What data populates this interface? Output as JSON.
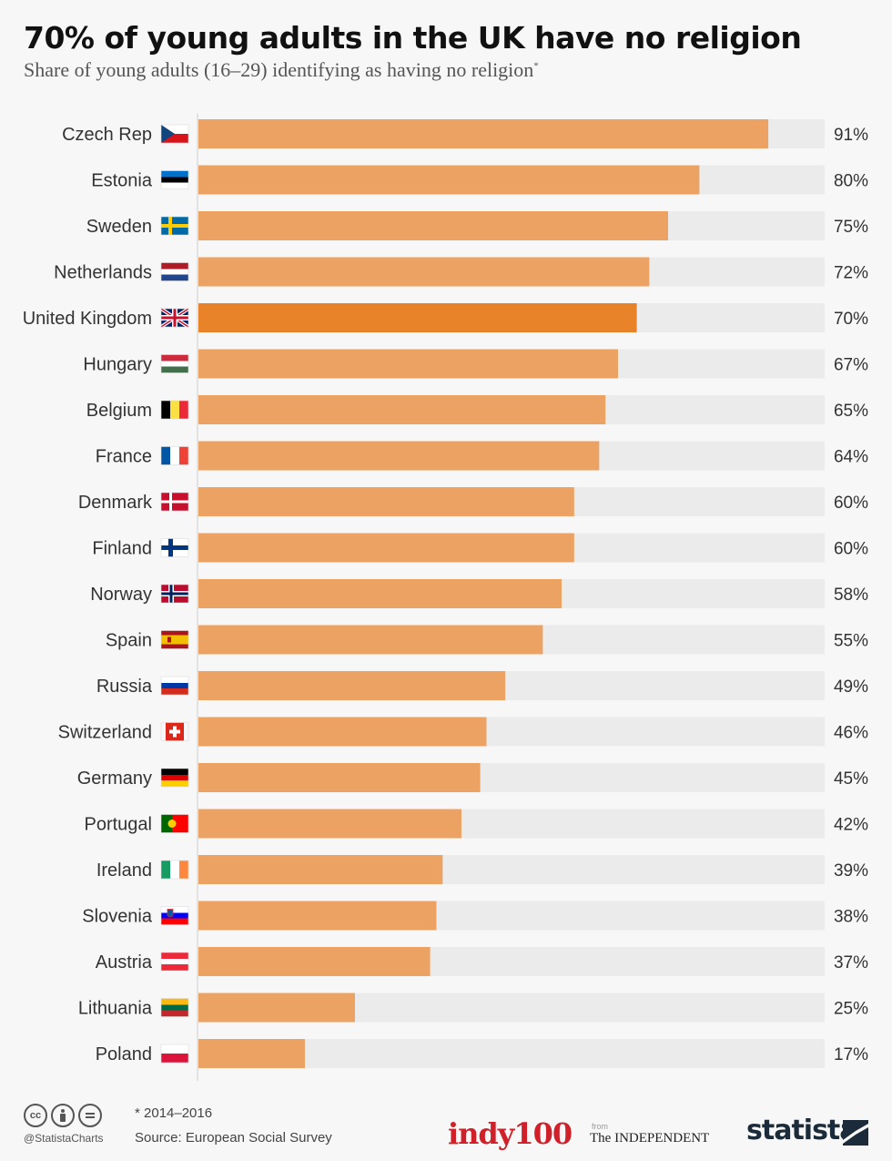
{
  "header": {
    "title": "70% of young adults in the UK have no religion",
    "subtitle": "Share of young adults (16–29) identifying as having no religion",
    "subtitle_marker": "*"
  },
  "colors": {
    "bar": "#eba263",
    "bar_highlight": "#e8832a",
    "track": "#ebebeb",
    "axis": "#cccccc"
  },
  "chart_data": {
    "type": "bar",
    "orientation": "horizontal",
    "title": "70% of young adults in the UK have no religion",
    "subtitle": "Share of young adults (16–29) identifying as having no religion*",
    "unit": "%",
    "xlim": [
      0,
      100
    ],
    "highlight": "United Kingdom",
    "categories": [
      "Czech Rep",
      "Estonia",
      "Sweden",
      "Netherlands",
      "United Kingdom",
      "Hungary",
      "Belgium",
      "France",
      "Denmark",
      "Finland",
      "Norway",
      "Spain",
      "Russia",
      "Switzerland",
      "Germany",
      "Portugal",
      "Ireland",
      "Slovenia",
      "Austria",
      "Lithuania",
      "Poland"
    ],
    "values": [
      91,
      80,
      75,
      72,
      70,
      67,
      65,
      64,
      60,
      60,
      58,
      55,
      49,
      46,
      45,
      42,
      39,
      38,
      37,
      25,
      17
    ],
    "value_labels": [
      "91%",
      "80%",
      "75%",
      "72%",
      "70%",
      "67%",
      "65%",
      "64%",
      "60%",
      "60%",
      "58%",
      "55%",
      "49%",
      "46%",
      "45%",
      "42%",
      "39%",
      "38%",
      "37%",
      "25%",
      "17%"
    ],
    "flag_icons": [
      "czech-flag-icon",
      "estonia-flag-icon",
      "sweden-flag-icon",
      "netherlands-flag-icon",
      "uk-flag-icon",
      "hungary-flag-icon",
      "belgium-flag-icon",
      "france-flag-icon",
      "denmark-flag-icon",
      "finland-flag-icon",
      "norway-flag-icon",
      "spain-flag-icon",
      "russia-flag-icon",
      "switzerland-flag-icon",
      "germany-flag-icon",
      "portugal-flag-icon",
      "ireland-flag-icon",
      "slovenia-flag-icon",
      "austria-flag-icon",
      "lithuania-flag-icon",
      "poland-flag-icon"
    ]
  },
  "footer": {
    "note": "* 2014–2016",
    "source": "Source: European Social Survey",
    "handle": "@StatistaCharts",
    "cc_icons": [
      "cc-icon",
      "by-icon",
      "nd-icon"
    ],
    "logo_indy": "indy100",
    "logo_from": "from",
    "logo_independent": "The INDEPENDENT",
    "logo_statista": "statista"
  }
}
